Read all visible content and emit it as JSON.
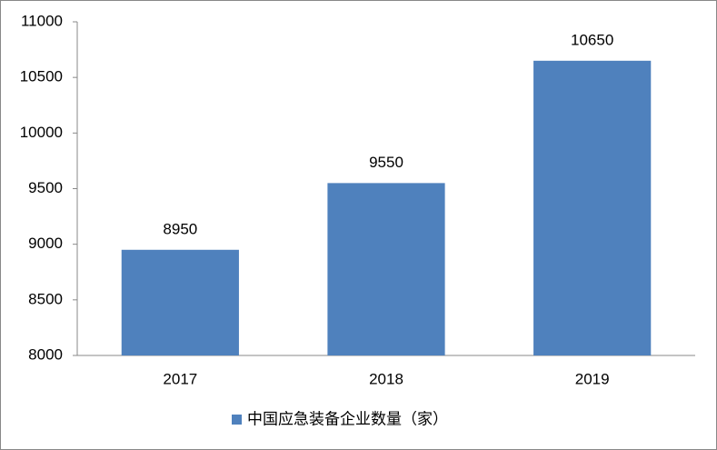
{
  "chart_data": {
    "type": "bar",
    "categories": [
      "2017",
      "2018",
      "2019"
    ],
    "series": [
      {
        "name": "中国应急装备企业数量（家）",
        "color": "#4f81bd",
        "values": [
          8950,
          9550,
          10650
        ]
      }
    ],
    "ylim": [
      8000,
      11000
    ],
    "yticks": [
      8000,
      8500,
      9000,
      9500,
      10000,
      10500,
      11000
    ],
    "grid": false,
    "legend": "bottom"
  }
}
